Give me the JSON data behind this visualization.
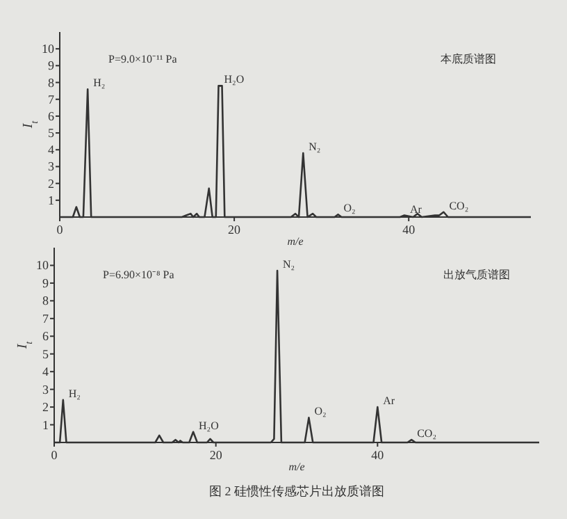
{
  "chart_data": [
    {
      "type": "line",
      "xlabel": "m/e",
      "ylabel": "I$_{t}$",
      "xlim": [
        0,
        54
      ],
      "xticks": [
        0,
        20,
        40
      ],
      "ylim": [
        0,
        11
      ],
      "yticks": [
        1,
        2,
        3,
        4,
        5,
        6,
        7,
        8,
        9,
        10
      ],
      "series": [
        {
          "color": "#333333",
          "x": [
            0,
            1.5,
            1.9,
            2.3,
            2.7,
            3.2,
            3.6,
            14,
            14.5,
            15,
            15.3,
            15.7,
            16,
            16.6,
            17.1,
            17.5,
            17.9,
            18.2,
            18.6,
            18.9,
            26.5,
            27,
            27.4,
            27.9,
            28.4,
            29,
            29.4,
            31.5,
            31.9,
            32.3,
            39,
            39.5,
            40.5,
            41,
            41.5,
            43,
            43.5,
            44,
            44.5,
            54
          ],
          "values": [
            0,
            0,
            0.6,
            0,
            0,
            7.6,
            0,
            0,
            0.1,
            0.2,
            0,
            0.2,
            0,
            0,
            1.7,
            0,
            0,
            7.8,
            7.8,
            0,
            0,
            0.2,
            0,
            3.8,
            0,
            0.2,
            0,
            0,
            0.15,
            0,
            0,
            0.1,
            0,
            0.2,
            0,
            0.1,
            0.1,
            0.3,
            0,
            0
          ]
        }
      ],
      "annotations": [
        "P=9.0×10⁻¹¹ Pa",
        "本底质谱图",
        {
          "text": "H₂",
          "x": 3.2,
          "y": 7.6
        },
        {
          "text": "H₂O",
          "x": 18.2,
          "y": 7.8
        },
        {
          "text": "N₂",
          "x": 27.9,
          "y": 3.8
        },
        {
          "text": "O₂",
          "x": 31.9,
          "y": 0.15
        },
        {
          "text": "Ar",
          "x": 39.5,
          "y": 0.1
        },
        {
          "text": "CO₂",
          "x": 44,
          "y": 0.3
        }
      ]
    },
    {
      "type": "line",
      "xlabel": "m/e",
      "ylabel": "I$_{t}$",
      "xlim": [
        0,
        60
      ],
      "xticks": [
        0,
        20,
        40
      ],
      "ylim": [
        0,
        11
      ],
      "yticks": [
        1,
        2,
        3,
        4,
        5,
        6,
        7,
        8,
        9,
        10
      ],
      "series": [
        {
          "color": "#333333",
          "x": [
            0,
            0.7,
            1.1,
            1.5,
            12.5,
            13,
            13.5,
            14.6,
            15,
            15.4,
            15.6,
            15.9,
            16.2,
            16.7,
            17.2,
            17.7,
            18.9,
            19.3,
            19.7,
            26.8,
            27.2,
            27.6,
            28.1,
            28.8,
            31,
            31.5,
            32,
            39.5,
            40,
            40.5,
            43.7,
            44.2,
            44.7,
            60
          ],
          "values": [
            0,
            0,
            2.4,
            0,
            0,
            0.4,
            0,
            0,
            0.15,
            0,
            0.1,
            0,
            0,
            0,
            0.6,
            0,
            0,
            0.2,
            0,
            0,
            0.2,
            9.7,
            0,
            0,
            0,
            1.4,
            0,
            0,
            2.0,
            0,
            0,
            0.15,
            0,
            0
          ]
        }
      ],
      "annotations": [
        "P=6.90×10⁻⁸ Pa",
        "出放气质谱图",
        "图 2  硅惯性传感芯片出放质谱图",
        {
          "text": "H₂",
          "x": 1.1,
          "y": 2.4
        },
        {
          "text": "H₂O",
          "x": 17.2,
          "y": 0.6
        },
        {
          "text": "N₂",
          "x": 27.6,
          "y": 9.7
        },
        {
          "text": "O₂",
          "x": 31.5,
          "y": 1.4
        },
        {
          "text": "Ar",
          "x": 40,
          "y": 2.0
        },
        {
          "text": "CO₂",
          "x": 44.2,
          "y": 0.15
        }
      ]
    }
  ]
}
